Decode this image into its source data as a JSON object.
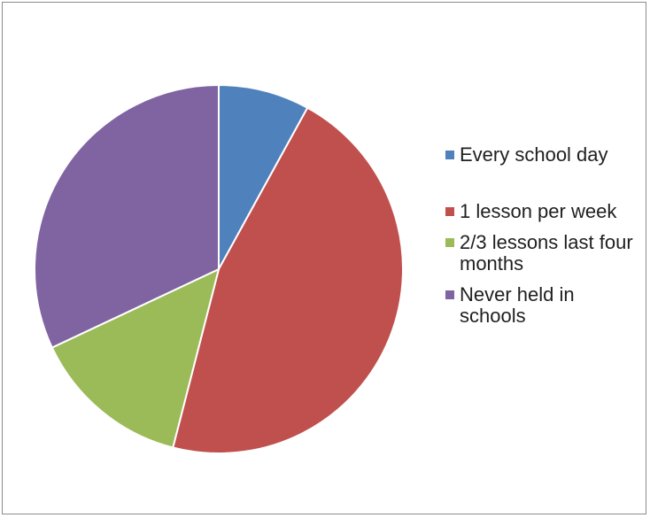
{
  "chart_data": {
    "type": "pie",
    "title": "",
    "legend_position": "right",
    "series": [
      {
        "labels": [
          "Every school day",
          "1 lesson per week",
          "2/3 lessons last four months",
          "Never held in schools"
        ],
        "values": [
          8,
          46,
          14,
          32
        ],
        "colors": [
          "#4f81bd",
          "#c0504d",
          "#9bbb59",
          "#8064a2"
        ]
      }
    ]
  },
  "legend": {
    "items": [
      {
        "label": "Every school day",
        "color": "#4f81bd"
      },
      {
        "label": "1 lesson per week",
        "color": "#c0504d"
      },
      {
        "label": "2/3 lessons last four months",
        "color": "#9bbb59"
      },
      {
        "label": "Never held in schools",
        "color": "#8064a2"
      }
    ]
  }
}
